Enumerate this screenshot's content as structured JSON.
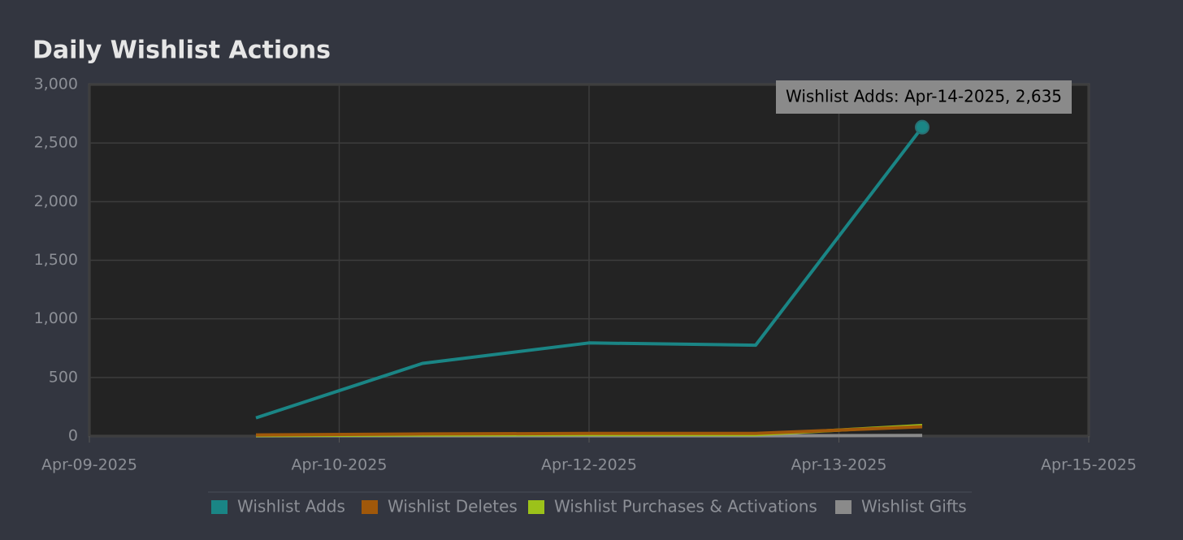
{
  "chart_data": {
    "type": "line",
    "title": "Daily Wishlist Actions",
    "x": [
      "2025-04-10",
      "2025-04-11",
      "2025-04-12",
      "2025-04-13",
      "2025-04-14"
    ],
    "xlim": [
      "2025-04-09T00:00",
      "2025-04-15T00:00"
    ],
    "xticks": [
      {
        "value": "2025-04-09T00:00",
        "label": "Apr-09-2025"
      },
      {
        "value": "2025-04-10T12:00",
        "label": "Apr-10-2025"
      },
      {
        "value": "2025-04-12T00:00",
        "label": "Apr-12-2025"
      },
      {
        "value": "2025-04-13T12:00",
        "label": "Apr-13-2025"
      },
      {
        "value": "2025-04-15T00:00",
        "label": "Apr-15-2025"
      }
    ],
    "ylim": [
      0,
      3000
    ],
    "yticks": [
      0,
      500,
      {
        "value": 1000,
        "label": "1,000"
      },
      {
        "value": 1500,
        "label": "1,500"
      },
      {
        "value": 2000,
        "label": "2,000"
      },
      {
        "value": 2500,
        "label": "2,500"
      },
      {
        "value": 3000,
        "label": "3,000"
      }
    ],
    "grid": true,
    "series": [
      {
        "name": "Wishlist Adds",
        "color": "#1a8585",
        "values": [
          155,
          620,
          795,
          775,
          2635
        ]
      },
      {
        "name": "Wishlist Deletes",
        "color": "#a0580a",
        "values": [
          10,
          18,
          22,
          22,
          80
        ]
      },
      {
        "name": "Wishlist Purchases & Activations",
        "color": "#9cc21a",
        "values": [
          5,
          10,
          12,
          12,
          90
        ]
      },
      {
        "name": "Wishlist Gifts",
        "color": "#8a8a8a",
        "values": [
          2,
          3,
          3,
          3,
          5
        ]
      }
    ],
    "tooltip": "Wishlist Adds: Apr-14-2025, 2,635"
  }
}
